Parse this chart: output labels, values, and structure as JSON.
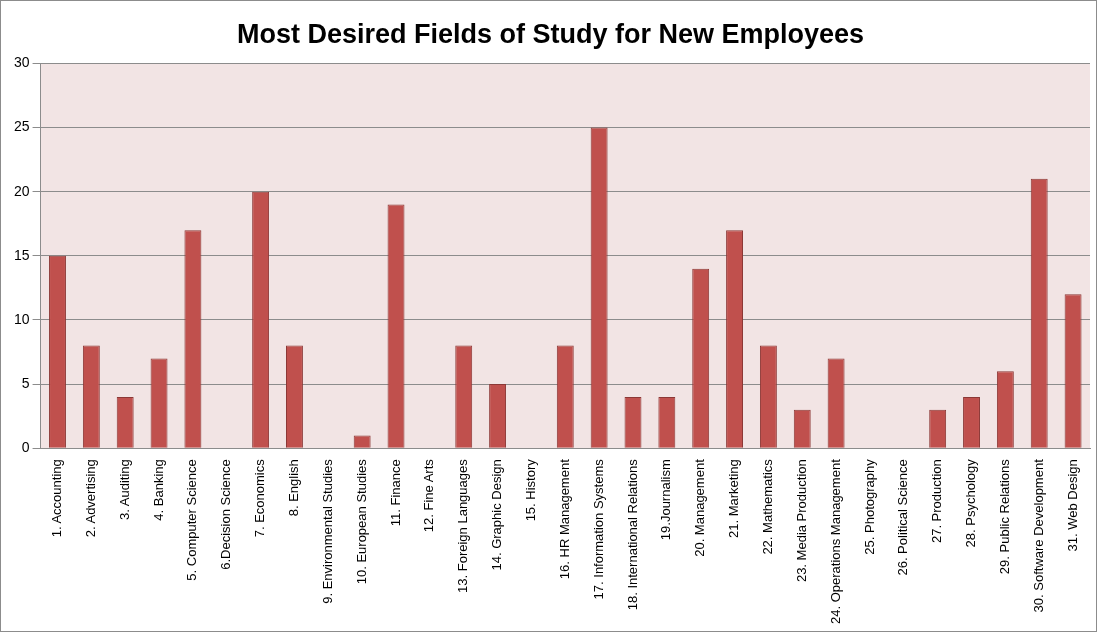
{
  "chart_data": {
    "type": "bar",
    "title": "Most Desired Fields of Study for New Employees",
    "categories": [
      "1. Accounting",
      "2. Advertising",
      "3. Auditing",
      "4. Banking",
      "5. Computer Science",
      "6.Decision Science",
      "7. Economics",
      "8. English",
      "9. Environmental Studies",
      "10. European Studies",
      "11. Finance",
      "12. Fine Arts",
      "13. Foreign Languages",
      "14. Graphic Design",
      "15. History",
      "16. HR Management",
      "17. Information Systems",
      "18. International Relations",
      "19.Journalism",
      "20. Management",
      "21. Marketing",
      "22. Mathematics",
      "23. Media Production",
      "24. Operations Management",
      "25. Photography",
      "26. Political Science",
      "27. Production",
      "28. Psychology",
      "29. Public Relations",
      "30. Software Development",
      "31. Web Design"
    ],
    "values": [
      15,
      8,
      4,
      7,
      17,
      0,
      20,
      8,
      0,
      1,
      19,
      0,
      8,
      5,
      0,
      8,
      25,
      4,
      4,
      14,
      17,
      8,
      3,
      7,
      0,
      0,
      3,
      4,
      6,
      21,
      12
    ],
    "color": "#c0504d",
    "ylim": [
      0,
      30
    ],
    "yticks": [
      0,
      5,
      10,
      15,
      20,
      25,
      30
    ],
    "grid": "y",
    "legend": false
  }
}
